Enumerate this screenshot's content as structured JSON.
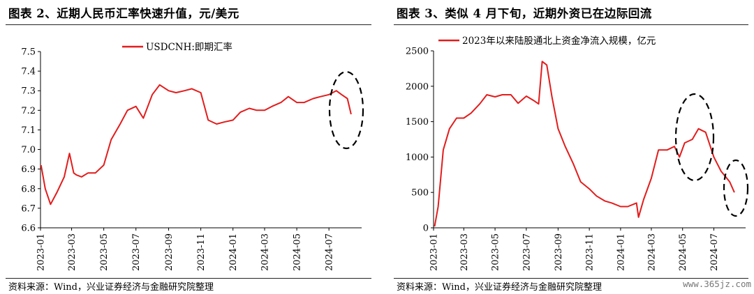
{
  "left": {
    "title": "图表 2、近期人民币汇率快速升值，元/美元",
    "source": "资料来源：Wind，兴业证券经济与金融研究院整理",
    "chart_data": {
      "type": "line",
      "title": "",
      "xlabel": "",
      "ylabel": "",
      "ylim": [
        6.6,
        7.5
      ],
      "yticks": [
        "7.5",
        "7.4",
        "7.3",
        "7.2",
        "7.1",
        "7.0",
        "6.9",
        "6.8",
        "6.7",
        "6.6"
      ],
      "yticks_values": [
        7.5,
        7.4,
        7.3,
        7.2,
        7.1,
        7.0,
        6.9,
        6.8,
        6.7,
        6.6
      ],
      "xlim": [
        "2023-01-01",
        "2024-09-01"
      ],
      "xticks": [
        "2023-01",
        "2023-03",
        "2023-05",
        "2023-07",
        "2023-09",
        "2023-11",
        "2024-01",
        "2024-03",
        "2024-05",
        "2024-07"
      ],
      "legend_position": "top-center",
      "grid": false,
      "annotation": "dashed-ellipse around 2024-07 to 2024-08 decline",
      "series": [
        {
          "name": "USDCNH:即期汇率",
          "color": "#e31c1c",
          "x": [
            "2023-01-02",
            "2023-01-10",
            "2023-01-20",
            "2023-02-01",
            "2023-02-15",
            "2023-02-25",
            "2023-03-05",
            "2023-03-10",
            "2023-03-20",
            "2023-04-01",
            "2023-04-15",
            "2023-05-01",
            "2023-05-15",
            "2023-06-01",
            "2023-06-15",
            "2023-07-01",
            "2023-07-15",
            "2023-08-01",
            "2023-08-15",
            "2023-09-01",
            "2023-09-15",
            "2023-10-01",
            "2023-10-15",
            "2023-11-01",
            "2023-11-15",
            "2023-12-01",
            "2023-12-15",
            "2024-01-01",
            "2024-01-15",
            "2024-02-01",
            "2024-02-15",
            "2024-03-01",
            "2024-03-15",
            "2024-04-01",
            "2024-04-15",
            "2024-05-01",
            "2024-05-15",
            "2024-06-01",
            "2024-06-15",
            "2024-07-01",
            "2024-07-15",
            "2024-07-25",
            "2024-08-05",
            "2024-08-12"
          ],
          "values": [
            6.92,
            6.8,
            6.72,
            6.78,
            6.86,
            6.98,
            6.88,
            6.87,
            6.86,
            6.88,
            6.88,
            6.92,
            7.05,
            7.13,
            7.2,
            7.22,
            7.16,
            7.28,
            7.33,
            7.3,
            7.29,
            7.3,
            7.31,
            7.29,
            7.15,
            7.13,
            7.14,
            7.15,
            7.19,
            7.21,
            7.2,
            7.2,
            7.22,
            7.24,
            7.27,
            7.24,
            7.24,
            7.26,
            7.27,
            7.28,
            7.3,
            7.28,
            7.26,
            7.18
          ]
        }
      ]
    }
  },
  "right": {
    "title": "图表 3、类似 4 月下旬，近期外资已在边际回流",
    "source": "资料来源：Wind，兴业证券经济与金融研究院整理",
    "watermark": "www.365jz.com",
    "chart_data": {
      "type": "line",
      "title": "",
      "xlabel": "",
      "ylabel": "",
      "ylim": [
        0,
        2500
      ],
      "yticks": [
        "2500",
        "2000",
        "1500",
        "1000",
        "500",
        "0"
      ],
      "yticks_values": [
        2500,
        2000,
        1500,
        1000,
        500,
        0
      ],
      "xlim": [
        "2023-01-01",
        "2024-09-01"
      ],
      "xticks": [
        "2023-01",
        "2023-03",
        "2023-05",
        "2023-07",
        "2023-09",
        "2023-11",
        "2024-01",
        "2024-03",
        "2024-05",
        "2024-07"
      ],
      "legend_position": "top-center",
      "grid": false,
      "annotation": "dashed-ellipses around 2024-04 to 2024-06 and 2024-07 to 2024-08",
      "series": [
        {
          "name": "2023年以来陆股通北上资金净流入规模，亿元",
          "color": "#e31c1c",
          "x": [
            "2023-01-03",
            "2023-01-10",
            "2023-01-20",
            "2023-02-01",
            "2023-02-15",
            "2023-03-01",
            "2023-03-15",
            "2023-04-01",
            "2023-04-15",
            "2023-05-01",
            "2023-05-15",
            "2023-06-01",
            "2023-06-15",
            "2023-07-01",
            "2023-07-15",
            "2023-07-25",
            "2023-08-01",
            "2023-08-10",
            "2023-08-20",
            "2023-09-01",
            "2023-09-15",
            "2023-10-01",
            "2023-10-15",
            "2023-11-01",
            "2023-11-15",
            "2023-12-01",
            "2023-12-15",
            "2024-01-01",
            "2024-01-15",
            "2024-02-01",
            "2024-02-05",
            "2024-02-15",
            "2024-03-01",
            "2024-03-15",
            "2024-04-01",
            "2024-04-15",
            "2024-04-25",
            "2024-05-05",
            "2024-05-20",
            "2024-06-01",
            "2024-06-15",
            "2024-07-01",
            "2024-07-15",
            "2024-08-01",
            "2024-08-10"
          ],
          "values": [
            20,
            300,
            1100,
            1400,
            1550,
            1550,
            1620,
            1750,
            1880,
            1850,
            1880,
            1880,
            1760,
            1860,
            1800,
            1750,
            2350,
            2300,
            1850,
            1400,
            1150,
            900,
            650,
            550,
            450,
            380,
            350,
            300,
            300,
            350,
            150,
            400,
            700,
            1100,
            1100,
            1150,
            1000,
            1200,
            1250,
            1400,
            1350,
            1000,
            800,
            650,
            500
          ]
        }
      ]
    }
  }
}
